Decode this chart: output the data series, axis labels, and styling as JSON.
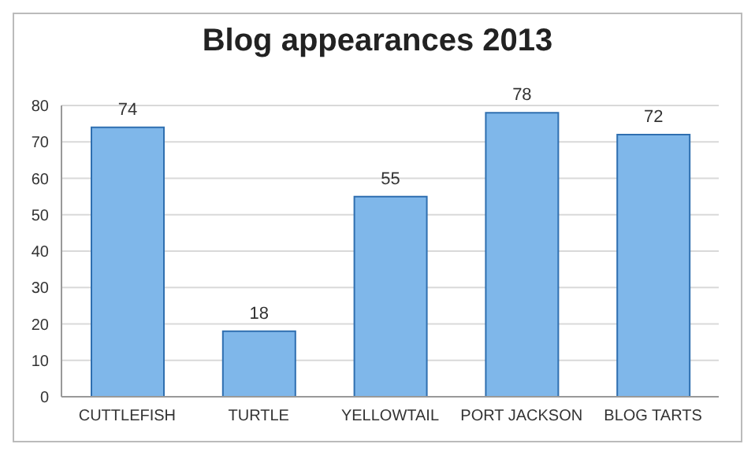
{
  "chart_data": {
    "type": "bar",
    "title": "Blog appearances 2013",
    "categories": [
      "CUTTLEFISH",
      "TURTLE",
      "YELLOWTAIL",
      "PORT JACKSON",
      "BLOG TARTS"
    ],
    "values": [
      74,
      18,
      55,
      78,
      72
    ],
    "color": "#7fb7ea",
    "ylim": [
      0,
      80
    ],
    "yticks": [
      0,
      10,
      20,
      30,
      40,
      50,
      60,
      70,
      80
    ],
    "grid": "y",
    "data_labels": true
  }
}
